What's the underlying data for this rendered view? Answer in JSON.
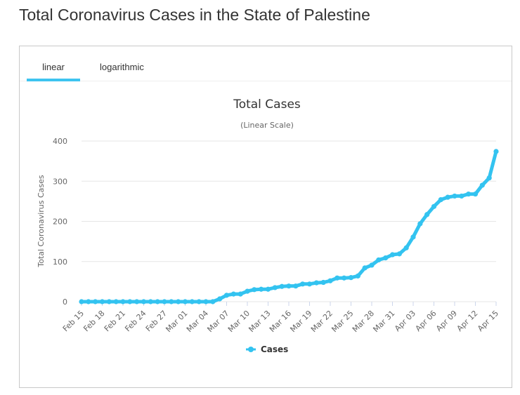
{
  "page": {
    "title": "Total Coronavirus Cases in the State of Palestine"
  },
  "tabs": [
    {
      "label": "linear",
      "active": true
    },
    {
      "label": "logarithmic",
      "active": false
    }
  ],
  "colors": {
    "accent": "#3ec4f0",
    "series": "#33c3f0",
    "grid": "#e6e6e6"
  },
  "chart_data": {
    "type": "line",
    "title": "Total Cases",
    "subtitle": "(Linear Scale)",
    "ylabel": "Total Coronavirus Cases",
    "ylim": [
      0,
      400
    ],
    "yticks": [
      0,
      100,
      200,
      300,
      400
    ],
    "xtick_labels": [
      "Feb 15",
      "Feb 18",
      "Feb 21",
      "Feb 24",
      "Feb 27",
      "Mar 01",
      "Mar 04",
      "Mar 07",
      "Mar 10",
      "Mar 13",
      "Mar 16",
      "Mar 19",
      "Mar 22",
      "Mar 25",
      "Mar 28",
      "Mar 31",
      "Apr 03",
      "Apr 06",
      "Apr 09",
      "Apr 12",
      "Apr 15"
    ],
    "x": [
      "Feb 15",
      "Feb 16",
      "Feb 17",
      "Feb 18",
      "Feb 19",
      "Feb 20",
      "Feb 21",
      "Feb 22",
      "Feb 23",
      "Feb 24",
      "Feb 25",
      "Feb 26",
      "Feb 27",
      "Feb 28",
      "Feb 29",
      "Mar 01",
      "Mar 02",
      "Mar 03",
      "Mar 04",
      "Mar 05",
      "Mar 06",
      "Mar 07",
      "Mar 08",
      "Mar 09",
      "Mar 10",
      "Mar 11",
      "Mar 12",
      "Mar 13",
      "Mar 14",
      "Mar 15",
      "Mar 16",
      "Mar 17",
      "Mar 18",
      "Mar 19",
      "Mar 20",
      "Mar 21",
      "Mar 22",
      "Mar 23",
      "Mar 24",
      "Mar 25",
      "Mar 26",
      "Mar 27",
      "Mar 28",
      "Mar 29",
      "Mar 30",
      "Mar 31",
      "Apr 01",
      "Apr 02",
      "Apr 03",
      "Apr 04",
      "Apr 05",
      "Apr 06",
      "Apr 07",
      "Apr 08",
      "Apr 09",
      "Apr 10",
      "Apr 11",
      "Apr 12",
      "Apr 13",
      "Apr 14",
      "Apr 15"
    ],
    "series": [
      {
        "name": "Cases",
        "values": [
          0,
          0,
          0,
          0,
          0,
          0,
          0,
          0,
          0,
          0,
          0,
          0,
          0,
          0,
          0,
          0,
          0,
          0,
          0,
          0,
          7,
          16,
          19,
          19,
          26,
          30,
          31,
          31,
          35,
          38,
          39,
          39,
          44,
          44,
          47,
          48,
          52,
          59,
          59,
          60,
          64,
          84,
          91,
          104,
          109,
          117,
          119,
          134,
          161,
          194,
          217,
          237,
          254,
          260,
          263,
          263,
          268,
          268,
          290,
          308,
          374
        ]
      }
    ],
    "legend": {
      "position": "bottom-center",
      "entry": "Cases"
    },
    "grid": true
  }
}
